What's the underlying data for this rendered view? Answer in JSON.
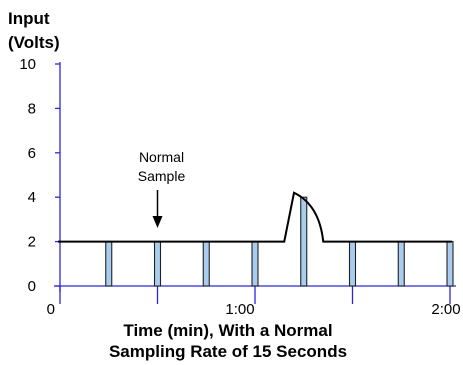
{
  "chart_data": {
    "type": "bar",
    "ylabel_lines": [
      "Input",
      "(Volts)"
    ],
    "xlabel_lines": [
      "Time (min), With a Normal",
      "Sampling Rate of 15 Seconds"
    ],
    "ylim": [
      0,
      10
    ],
    "xlim": [
      0,
      2
    ],
    "y_ticks": [
      "0",
      "2",
      "4",
      "6",
      "8",
      "10"
    ],
    "x_ticks": [
      {
        "value": 0,
        "label": "0"
      },
      {
        "value": 0.5,
        "label": ""
      },
      {
        "value": 1,
        "label": "1:00"
      },
      {
        "value": 1.5,
        "label": ""
      },
      {
        "value": 2,
        "label": "2:00"
      }
    ],
    "signal": {
      "baseline": 2,
      "pulse": {
        "start": 1.15,
        "peak_time": 1.2,
        "peak": 4.2,
        "end": 1.35
      }
    },
    "samples": [
      {
        "t": 0.25,
        "value": 2
      },
      {
        "t": 0.5,
        "value": 2
      },
      {
        "t": 0.75,
        "value": 2
      },
      {
        "t": 1.0,
        "value": 2
      },
      {
        "t": 1.25,
        "value": 4
      },
      {
        "t": 1.5,
        "value": 2
      },
      {
        "t": 1.75,
        "value": 2
      },
      {
        "t": 2.0,
        "value": 2
      }
    ],
    "annotation": {
      "lines": [
        "Normal",
        "Sample"
      ],
      "target_t": 0.5
    },
    "grid": false,
    "colors": {
      "sample_fill": "#a9cdee",
      "sample_stroke": "#222222",
      "axis": "#2a2ad8",
      "signal": "#000000"
    }
  }
}
